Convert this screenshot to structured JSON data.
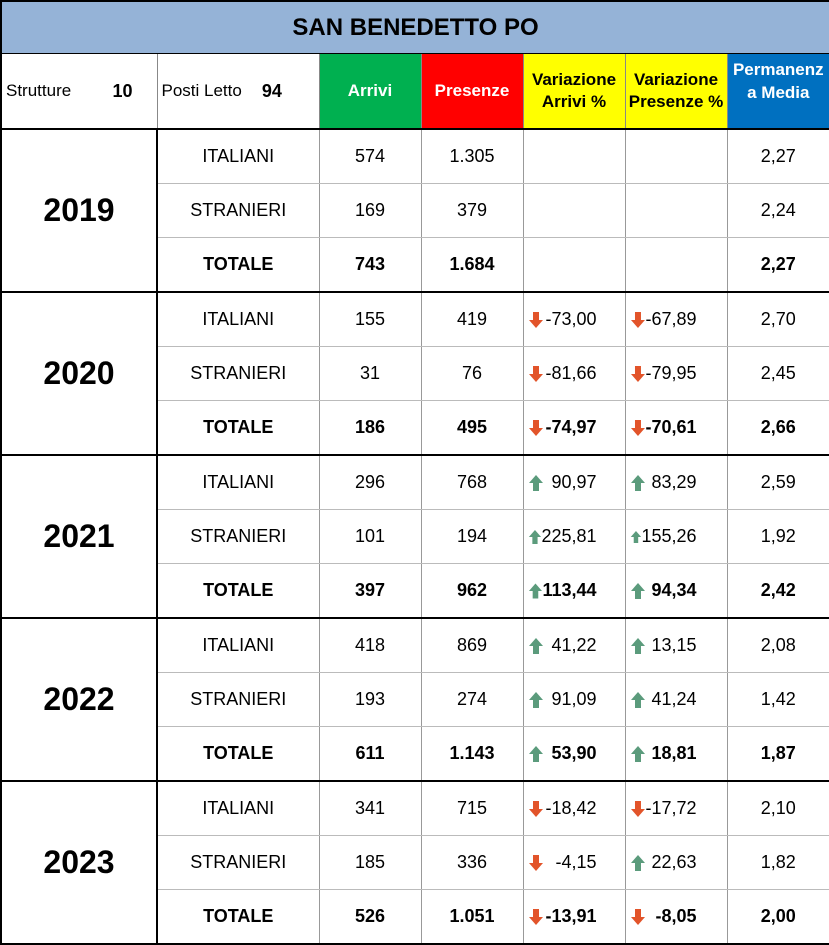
{
  "title": "SAN BENEDETTO PO",
  "header": {
    "strutture_label": "Strutture",
    "strutture_value": "10",
    "posti_label": "Posti Letto",
    "posti_value": "94",
    "arrivi": "Arrivi",
    "presenze": "Presenze",
    "var_arrivi_l1": "Variazione",
    "var_arrivi_l2": "Arrivi %",
    "var_presenze_l1": "Variazione",
    "var_presenze_l2": "Presenze %",
    "perm_l1": "Permanenz",
    "perm_l2": "a Media"
  },
  "colors": {
    "up": "#5B9B7C",
    "down": "#E2542A",
    "arrivi": "#00B050",
    "presenze": "#FF0000",
    "variazione": "#FFFF00",
    "permanenza": "#0070C0",
    "title": "#95B3D7"
  },
  "chart_data": {
    "type": "table",
    "title": "SAN BENEDETTO PO",
    "columns": [
      "Arrivi",
      "Presenze",
      "Variazione Arrivi %",
      "Variazione Presenze %",
      "Permanenza Media"
    ],
    "years": [
      {
        "year": "2019",
        "rows": [
          {
            "label": "ITALIANI",
            "arrivi": "574",
            "presenze": "1.305",
            "var_arrivi": "",
            "var_arrivi_dir": "",
            "var_presenze": "",
            "var_presenze_dir": "",
            "perm": "2,27"
          },
          {
            "label": "STRANIERI",
            "arrivi": "169",
            "presenze": "379",
            "var_arrivi": "",
            "var_arrivi_dir": "",
            "var_presenze": "",
            "var_presenze_dir": "",
            "perm": "2,24"
          },
          {
            "label": "TOTALE",
            "arrivi": "743",
            "presenze": "1.684",
            "var_arrivi": "",
            "var_arrivi_dir": "",
            "var_presenze": "",
            "var_presenze_dir": "",
            "perm": "2,27"
          }
        ]
      },
      {
        "year": "2020",
        "rows": [
          {
            "label": "ITALIANI",
            "arrivi": "155",
            "presenze": "419",
            "var_arrivi": "-73,00",
            "var_arrivi_dir": "down",
            "var_presenze": "-67,89",
            "var_presenze_dir": "down",
            "perm": "2,70"
          },
          {
            "label": "STRANIERI",
            "arrivi": "31",
            "presenze": "76",
            "var_arrivi": "-81,66",
            "var_arrivi_dir": "down",
            "var_presenze": "-79,95",
            "var_presenze_dir": "down",
            "perm": "2,45"
          },
          {
            "label": "TOTALE",
            "arrivi": "186",
            "presenze": "495",
            "var_arrivi": "-74,97",
            "var_arrivi_dir": "down",
            "var_presenze": "-70,61",
            "var_presenze_dir": "down",
            "perm": "2,66"
          }
        ]
      },
      {
        "year": "2021",
        "rows": [
          {
            "label": "ITALIANI",
            "arrivi": "296",
            "presenze": "768",
            "var_arrivi": "90,97",
            "var_arrivi_dir": "up",
            "var_presenze": "83,29",
            "var_presenze_dir": "up",
            "perm": "2,59"
          },
          {
            "label": "STRANIERI",
            "arrivi": "101",
            "presenze": "194",
            "var_arrivi": "225,81",
            "var_arrivi_dir": "up",
            "var_presenze": "155,26",
            "var_presenze_dir": "up",
            "perm": "1,92"
          },
          {
            "label": "TOTALE",
            "arrivi": "397",
            "presenze": "962",
            "var_arrivi": "113,44",
            "var_arrivi_dir": "up",
            "var_presenze": "94,34",
            "var_presenze_dir": "up",
            "perm": "2,42"
          }
        ]
      },
      {
        "year": "2022",
        "rows": [
          {
            "label": "ITALIANI",
            "arrivi": "418",
            "presenze": "869",
            "var_arrivi": "41,22",
            "var_arrivi_dir": "up",
            "var_presenze": "13,15",
            "var_presenze_dir": "up",
            "perm": "2,08"
          },
          {
            "label": "STRANIERI",
            "arrivi": "193",
            "presenze": "274",
            "var_arrivi": "91,09",
            "var_arrivi_dir": "up",
            "var_presenze": "41,24",
            "var_presenze_dir": "up",
            "perm": "1,42"
          },
          {
            "label": "TOTALE",
            "arrivi": "611",
            "presenze": "1.143",
            "var_arrivi": "53,90",
            "var_arrivi_dir": "up",
            "var_presenze": "18,81",
            "var_presenze_dir": "up",
            "perm": "1,87"
          }
        ]
      },
      {
        "year": "2023",
        "rows": [
          {
            "label": "ITALIANI",
            "arrivi": "341",
            "presenze": "715",
            "var_arrivi": "-18,42",
            "var_arrivi_dir": "down",
            "var_presenze": "-17,72",
            "var_presenze_dir": "down",
            "perm": "2,10"
          },
          {
            "label": "STRANIERI",
            "arrivi": "185",
            "presenze": "336",
            "var_arrivi": "-4,15",
            "var_arrivi_dir": "down",
            "var_presenze": "22,63",
            "var_presenze_dir": "up",
            "perm": "1,82"
          },
          {
            "label": "TOTALE",
            "arrivi": "526",
            "presenze": "1.051",
            "var_arrivi": "-13,91",
            "var_arrivi_dir": "down",
            "var_presenze": "-8,05",
            "var_presenze_dir": "down",
            "perm": "2,00"
          }
        ]
      }
    ]
  }
}
